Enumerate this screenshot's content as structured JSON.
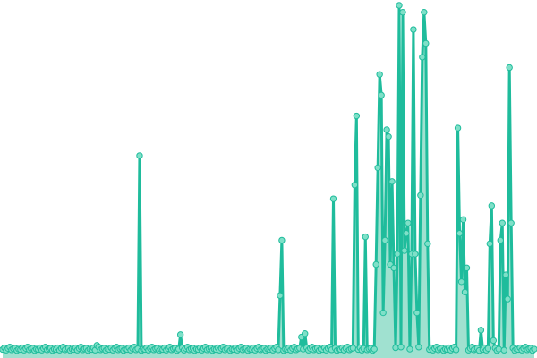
{
  "chart_data": {
    "type": "area",
    "title": "",
    "xlabel": "",
    "ylabel": "",
    "ylim": [
      0,
      100
    ],
    "grid": false,
    "axes_visible": false,
    "markers": true,
    "colors": {
      "line": "#1fbc9c",
      "fill": "#8fdcc8",
      "marker_fill": "#7fe0c8"
    },
    "values": [
      0.4,
      0.9,
      0.2,
      0.7,
      1.1,
      0.3,
      0.6,
      0.8,
      0.1,
      0.5,
      0.4,
      0.9,
      0.2,
      0.7,
      1.1,
      0.3,
      0.6,
      0.8,
      0.1,
      0.5,
      0.4,
      0.9,
      0.2,
      0.7,
      1.1,
      0.3,
      0.6,
      0.8,
      0.1,
      0.5,
      0.4,
      0.9,
      0.2,
      0.7,
      1.1,
      0.3,
      0.6,
      0.8,
      0.1,
      0.5,
      0.4,
      0.9,
      0.2,
      0.7,
      1.1,
      0.3,
      0.6,
      0.8,
      0.1,
      0.5,
      0.4,
      0.9,
      0.2,
      1.6,
      1.1,
      0.3,
      0.6,
      0.8,
      0.1,
      0.5,
      0.4,
      0.9,
      0.2,
      0.7,
      1.1,
      0.3,
      0.6,
      0.8,
      0.1,
      0.5,
      0.4,
      0.9,
      0.2,
      0.7,
      1.1,
      0.3,
      0.6,
      56.5,
      0.1,
      0.5,
      0.4,
      0.9,
      0.2,
      0.7,
      1.1,
      0.3,
      0.6,
      0.8,
      0.1,
      0.5,
      0.4,
      0.9,
      0.2,
      0.7,
      1.1,
      0.3,
      0.6,
      0.8,
      0.1,
      0.5,
      4.7,
      0.9,
      0.2,
      0.7,
      1.1,
      0.3,
      0.6,
      0.8,
      0.1,
      0.5,
      0.4,
      0.9,
      0.2,
      0.7,
      1.1,
      0.3,
      0.6,
      0.8,
      0.1,
      0.5,
      0.4,
      0.9,
      0.2,
      0.7,
      1.1,
      0.3,
      0.6,
      0.8,
      0.1,
      0.5,
      0.4,
      0.9,
      0.2,
      0.7,
      1.1,
      0.3,
      0.6,
      0.8,
      0.1,
      0.5,
      0.4,
      0.9,
      0.2,
      0.7,
      1.1,
      0.3,
      0.6,
      0.8,
      0.1,
      0.5,
      0.4,
      0.9,
      0.2,
      0.7,
      1.1,
      0.3,
      16,
      32,
      0.1,
      0.5,
      0.4,
      0.9,
      0.2,
      0.7,
      1.1,
      0.3,
      0.6,
      0.8,
      4,
      0.5,
      5,
      0.9,
      0.2,
      0.7,
      1.1,
      0.3,
      0.6,
      0.8,
      0.1,
      0.5,
      0.4,
      0.9,
      0.2,
      0.7,
      1.1,
      0.3,
      44,
      0.8,
      0.1,
      0.5,
      0.4,
      0.9,
      0.2,
      0.7,
      1.1,
      0.3,
      0.6,
      0.8,
      48,
      68,
      0.4,
      0.9,
      0.2,
      0.7,
      33,
      0.3,
      0.6,
      0.8,
      0.1,
      0.5,
      25,
      53,
      80,
      74,
      11,
      32,
      64,
      62,
      25,
      49,
      24,
      0.9,
      28,
      100,
      1.1,
      98,
      29,
      34,
      37,
      0.5,
      28,
      93,
      28,
      11,
      1.1,
      45,
      85,
      98,
      89,
      31,
      0.4,
      0.9,
      0.2,
      0.7,
      1.1,
      0.3,
      0.6,
      0.8,
      0.1,
      0.5,
      0.4,
      0.9,
      0.2,
      0.7,
      1.1,
      0.3,
      64.5,
      34,
      20,
      38,
      17,
      24,
      0.2,
      0.7,
      1.1,
      0.3,
      0.6,
      0.8,
      0.1,
      6,
      0.4,
      0.9,
      0.2,
      0.7,
      31,
      42,
      3,
      0.8,
      0.1,
      0.5,
      32,
      37,
      0.2,
      22,
      15,
      82,
      37,
      0.8,
      0.1,
      0.5,
      0.4,
      0.9,
      0.2,
      0.7,
      1.1,
      0.3,
      0.6,
      0.8,
      0.1,
      0.5
    ]
  }
}
